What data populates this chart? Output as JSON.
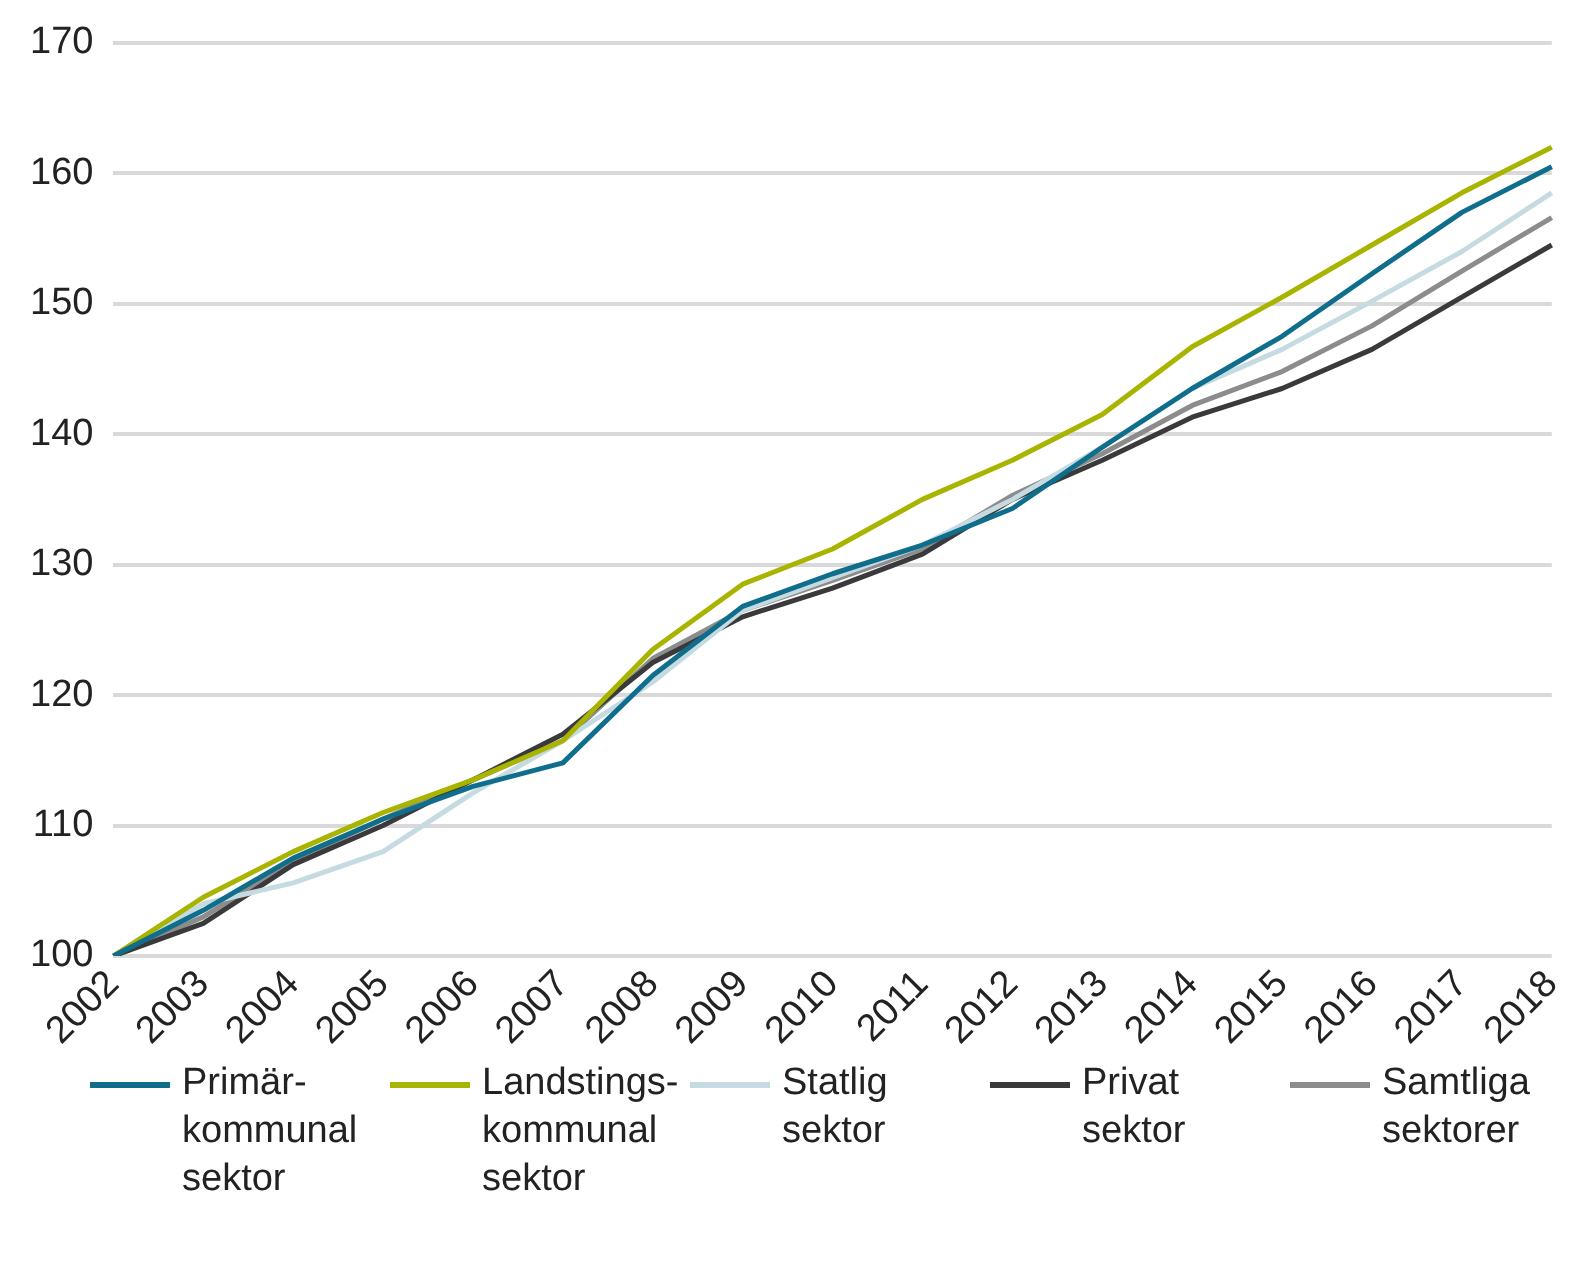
{
  "chart_data": {
    "type": "line",
    "categories": [
      "2002",
      "2003",
      "2004",
      "2005",
      "2006",
      "2007",
      "2008",
      "2009",
      "2010",
      "2011",
      "2012",
      "2013",
      "2014",
      "2015",
      "2016",
      "2017",
      "2018"
    ],
    "ylim": [
      100,
      170
    ],
    "yticks": [
      100,
      110,
      120,
      130,
      140,
      150,
      160,
      170
    ],
    "grid": "y",
    "legend": "bottom",
    "marker": "none",
    "line_style": "solid",
    "series": [
      {
        "name": "Primär- kommunal sektor",
        "color": "#0e6e8c",
        "values": [
          100,
          103.5,
          107.5,
          110.5,
          113,
          114.8,
          121.5,
          126.8,
          129.3,
          131.5,
          134.3,
          139,
          143.5,
          147.5,
          152.3,
          157,
          160.5
        ]
      },
      {
        "name": "Landstings- kommunal sektor",
        "color": "#a9b400",
        "values": [
          100,
          104.5,
          108,
          111,
          113.5,
          116.5,
          123.5,
          128.5,
          131.2,
          135,
          138,
          141.5,
          146.7,
          150.5,
          154.5,
          158.5,
          162
        ]
      },
      {
        "name": "Statlig sektor",
        "color": "#c5dbe1",
        "values": [
          100,
          104,
          105.6,
          108,
          112.5,
          116.5,
          121,
          126.5,
          129,
          131.5,
          135,
          139,
          143.5,
          146.5,
          150.2,
          154,
          158.5
        ]
      },
      {
        "name": "Privat sektor",
        "color": "#3a3a3c",
        "values": [
          100,
          102.5,
          107,
          110,
          113.5,
          117,
          122.5,
          126,
          128.2,
          130.8,
          135,
          138,
          141.3,
          143.5,
          146.5,
          150.5,
          154.5
        ]
      },
      {
        "name": "Samtliga sektorer",
        "color": "#8c8c8c",
        "values": [
          100,
          103,
          107.3,
          110.5,
          113.5,
          116.5,
          122.8,
          126.5,
          128.8,
          131.2,
          135.3,
          138.5,
          142.2,
          144.8,
          148.3,
          152.5,
          156.6
        ]
      }
    ]
  }
}
